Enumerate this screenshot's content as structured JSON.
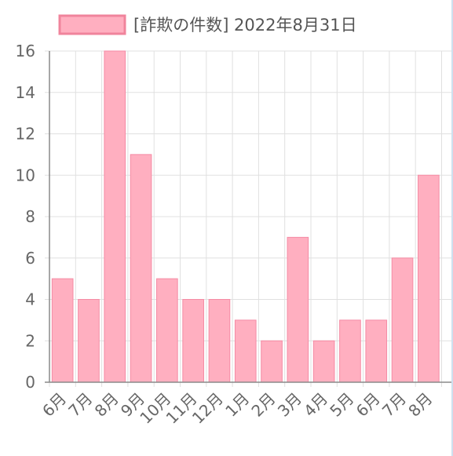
{
  "chart_data": {
    "type": "bar",
    "legend": {
      "label": "[詐欺の件数] 2022年8月31日",
      "position": "top"
    },
    "categories": [
      "6月",
      "7月",
      "8月",
      "9月",
      "10月",
      "11月",
      "12月",
      "1月",
      "2月",
      "3月",
      "4月",
      "5月",
      "6月",
      "7月",
      "8月"
    ],
    "values": [
      5,
      4,
      16,
      11,
      5,
      4,
      4,
      3,
      2,
      7,
      2,
      3,
      3,
      6,
      10
    ],
    "ylim": [
      0,
      16
    ],
    "yticks": [
      0,
      2,
      4,
      6,
      8,
      10,
      12,
      14,
      16
    ],
    "grid": true,
    "colors": {
      "bar_fill": "#ffafc0",
      "bar_border": "#f58ba4",
      "grid": "#e0e0e0",
      "axis": "#8a8a8a",
      "tick_text": "#666666",
      "legend_text": "#555555",
      "legend_fill": "#ffafc0",
      "legend_border": "#f0849c"
    }
  }
}
